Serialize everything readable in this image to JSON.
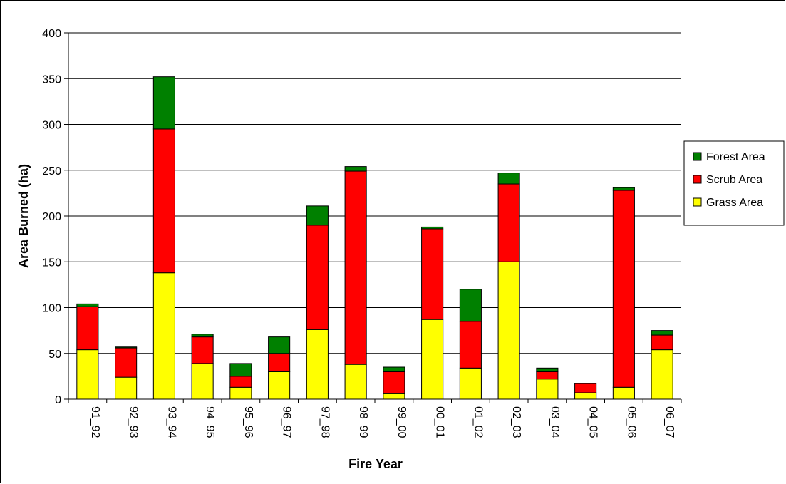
{
  "chart_data": {
    "type": "bar",
    "stacked": true,
    "title": "",
    "xlabel": "Fire Year",
    "ylabel": "Area Burned (ha)",
    "ylim": [
      0,
      400
    ],
    "yticks": [
      0,
      50,
      100,
      150,
      200,
      250,
      300,
      350,
      400
    ],
    "grid": "horizontal",
    "legend_position": "right",
    "categories": [
      "91_92",
      "92_93",
      "93_94",
      "94_95",
      "95_96",
      "96_97",
      "97_98",
      "98_99",
      "99_00",
      "00_01",
      "01_02",
      "02_03",
      "03_04",
      "04_05",
      "05_06",
      "06_07"
    ],
    "series": [
      {
        "name": "Grass Area",
        "color": "#FFFF00",
        "values": [
          54,
          24,
          138,
          39,
          13,
          30,
          76,
          38,
          6,
          87,
          34,
          150,
          22,
          7,
          13,
          54
        ]
      },
      {
        "name": "Scrub Area",
        "color": "#FF0000",
        "values": [
          47,
          32,
          157,
          29,
          12,
          20,
          114,
          211,
          24,
          99,
          51,
          85,
          8,
          10,
          215,
          16
        ]
      },
      {
        "name": "Forest Area",
        "color": "#008000",
        "values": [
          3,
          1,
          57,
          3,
          14,
          18,
          21,
          5,
          5,
          2,
          35,
          12,
          4,
          0,
          3,
          5
        ]
      }
    ],
    "legend_order": [
      "Forest Area",
      "Scrub Area",
      "Grass Area"
    ]
  }
}
